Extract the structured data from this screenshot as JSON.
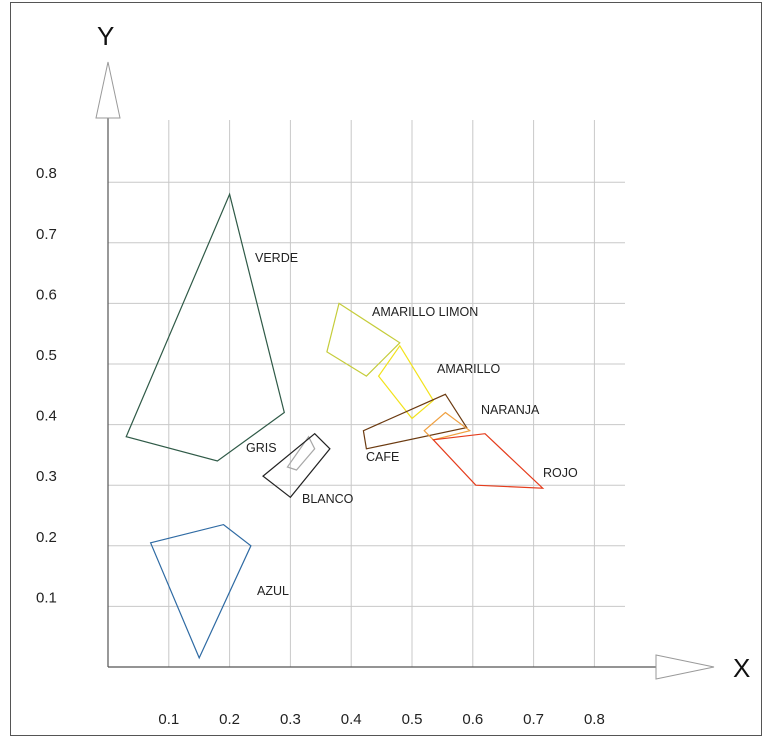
{
  "chart_data": {
    "type": "diagram",
    "xlabel": "X",
    "ylabel": "Y",
    "xlim": [
      0.0,
      0.85
    ],
    "ylim": [
      0.0,
      0.9
    ],
    "x_ticks": [
      "0.1",
      "0.2",
      "0.3",
      "0.4",
      "0.5",
      "0.6",
      "0.7",
      "0.8"
    ],
    "y_ticks": [
      "0.1",
      "0.2",
      "0.3",
      "0.4",
      "0.5",
      "0.6",
      "0.7",
      "0.8"
    ],
    "grid": true,
    "regions": [
      {
        "label": "VERDE",
        "color": "#2f5a47",
        "points": [
          [
            0.2,
            0.78
          ],
          [
            0.29,
            0.42
          ],
          [
            0.18,
            0.34
          ],
          [
            0.03,
            0.38
          ]
        ]
      },
      {
        "label": "AZUL",
        "color": "#2e6aa3",
        "points": [
          [
            0.07,
            0.205
          ],
          [
            0.19,
            0.235
          ],
          [
            0.235,
            0.2
          ],
          [
            0.15,
            0.015
          ]
        ]
      },
      {
        "label": "GRIS",
        "color": "#a8a8a8",
        "points": [
          [
            0.33,
            0.38
          ],
          [
            0.34,
            0.36
          ],
          [
            0.31,
            0.325
          ],
          [
            0.295,
            0.33
          ]
        ]
      },
      {
        "label": "BLANCO",
        "color": "#222222",
        "points": [
          [
            0.34,
            0.385
          ],
          [
            0.365,
            0.36
          ],
          [
            0.3,
            0.28
          ],
          [
            0.255,
            0.315
          ]
        ]
      },
      {
        "label": "AMARILLO LIMON",
        "color": "#c5cc3a",
        "points": [
          [
            0.38,
            0.6
          ],
          [
            0.48,
            0.535
          ],
          [
            0.425,
            0.48
          ],
          [
            0.36,
            0.52
          ]
        ]
      },
      {
        "label": "AMARILLO",
        "color": "#f2e21c",
        "points": [
          [
            0.48,
            0.53
          ],
          [
            0.535,
            0.44
          ],
          [
            0.5,
            0.41
          ],
          [
            0.445,
            0.48
          ]
        ]
      },
      {
        "label": "CAFE",
        "color": "#6b3a10",
        "points": [
          [
            0.555,
            0.45
          ],
          [
            0.59,
            0.395
          ],
          [
            0.425,
            0.36
          ],
          [
            0.42,
            0.39
          ]
        ]
      },
      {
        "label": "NARANJA",
        "color": "#f0a040",
        "points": [
          [
            0.555,
            0.42
          ],
          [
            0.595,
            0.39
          ],
          [
            0.535,
            0.375
          ],
          [
            0.52,
            0.39
          ]
        ]
      },
      {
        "label": "ROJO",
        "color": "#e53c1c",
        "points": [
          [
            0.62,
            0.385
          ],
          [
            0.715,
            0.295
          ],
          [
            0.605,
            0.3
          ],
          [
            0.535,
            0.375
          ]
        ]
      }
    ]
  }
}
